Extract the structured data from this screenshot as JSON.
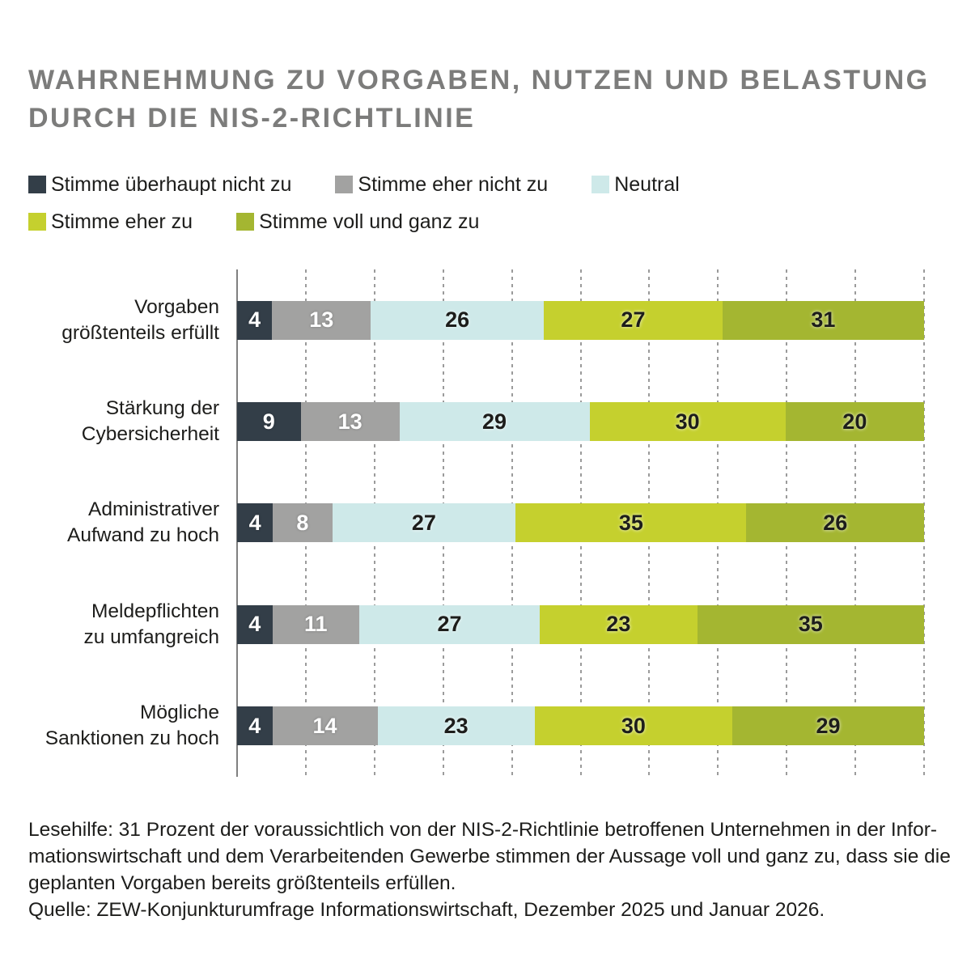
{
  "title": {
    "line1": "WAHRNEHMUNG ZU VORGABEN, NUTZEN UND BELASTUNG",
    "line2": "DURCH DIE NIS-2-RICHTLINIE"
  },
  "legend": [
    {
      "label": "Stimme überhaupt nicht zu",
      "color": "#333e48"
    },
    {
      "label": "Stimme eher nicht zu",
      "color": "#a2a2a1"
    },
    {
      "label": "Neutral",
      "color": "#cee9e9"
    },
    {
      "label": "Stimme eher zu",
      "color": "#c5d02e"
    },
    {
      "label": "Stimme voll und ganz zu",
      "color": "#a4b631"
    }
  ],
  "chart_data": {
    "type": "bar",
    "orientation": "horizontal",
    "stacked": true,
    "unit": "percent",
    "axis_range": [
      0,
      100
    ],
    "gridlines_every": 10,
    "grid": true,
    "legend_position": "top",
    "categories": [
      [
        "Vorgaben",
        "größtenteils erfüllt"
      ],
      [
        "Stärkung der",
        "Cybersicherheit"
      ],
      [
        "Administrativer",
        "Aufwand zu hoch"
      ],
      [
        "Meldepflichten",
        "zu umfangreich"
      ],
      [
        "Mögliche",
        "Sanktionen zu hoch"
      ]
    ],
    "series": [
      {
        "name": "Stimme überhaupt nicht zu",
        "color": "#333e48",
        "values": [
          4,
          9,
          4,
          4,
          4
        ]
      },
      {
        "name": "Stimme eher nicht zu",
        "color": "#a2a2a1",
        "values": [
          13,
          13,
          8,
          11,
          14
        ]
      },
      {
        "name": "Neutral",
        "color": "#cee9e9",
        "values": [
          26,
          29,
          27,
          27,
          23
        ]
      },
      {
        "name": "Stimme eher zu",
        "color": "#c5d02e",
        "values": [
          27,
          30,
          35,
          23,
          30
        ]
      },
      {
        "name": "Stimme voll und ganz zu",
        "color": "#a4b631",
        "values": [
          31,
          20,
          26,
          35,
          29
        ]
      }
    ],
    "value_label_color_light": "#ffffff",
    "value_label_color_dark": "#1d1d1b"
  },
  "footer": {
    "lesehilfe_lines": [
      "Lesehilfe: 31 Prozent der voraussichtlich von der NIS-2-Richtlinie betroffenen Unternehmen in der Infor-",
      "mationswirtschaft und dem Verarbeitenden Gewerbe stimmen der Aussage voll und ganz zu, dass sie die",
      "geplanten Vorgaben bereits größtenteils erfüllen."
    ],
    "quelle": "Quelle: ZEW-Konjunkturumfrage Informationswirtschaft, Dezember 2025 und Januar 2026."
  }
}
